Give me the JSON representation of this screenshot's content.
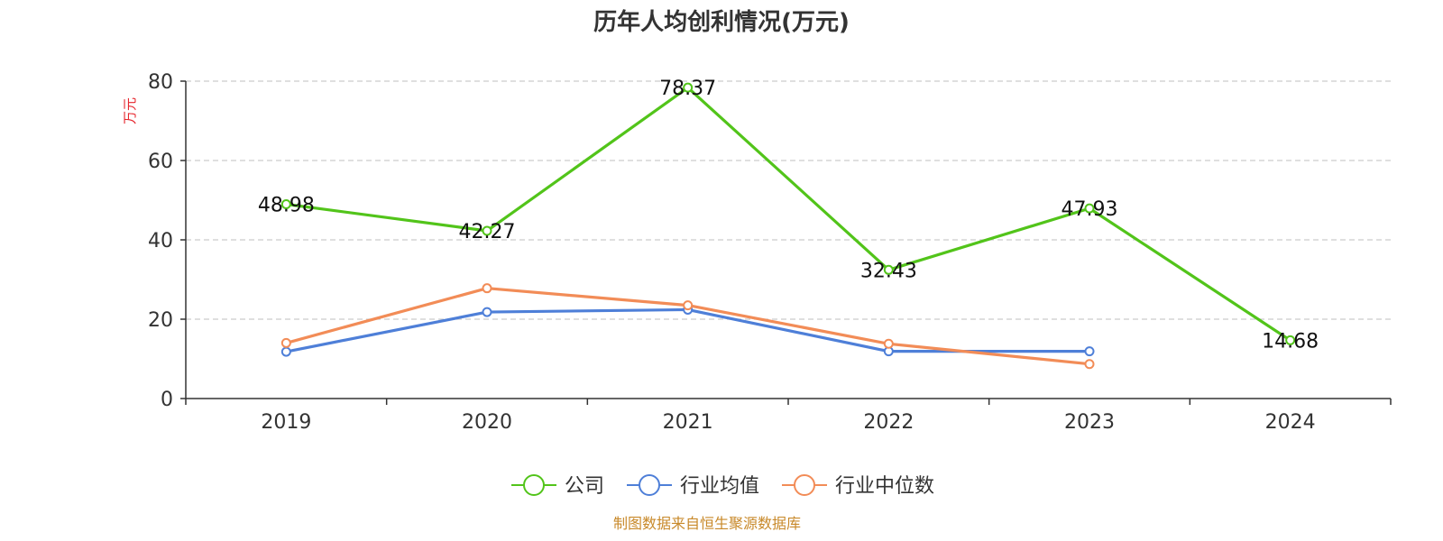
{
  "chart_data": {
    "type": "line",
    "title": "历年人均创利情况(万元)",
    "ylabel": "万元",
    "xlabel": "",
    "categories": [
      "2019",
      "2020",
      "2021",
      "2022",
      "2023",
      "2024"
    ],
    "ylim": [
      0,
      80
    ],
    "yticks": [
      0,
      20,
      40,
      60,
      80
    ],
    "grid": true,
    "legend_position": "bottom-center",
    "series": [
      {
        "name": "公司",
        "color": "#52c41a",
        "values": [
          48.98,
          42.27,
          78.37,
          32.43,
          47.93,
          14.68
        ],
        "labels": [
          "48.98",
          "42.27",
          "78.37",
          "32.43",
          "47.93",
          "14.68"
        ]
      },
      {
        "name": "行业均值",
        "color": "#4e7fd8",
        "values": [
          11.8,
          21.8,
          22.4,
          11.9,
          11.9,
          null
        ]
      },
      {
        "name": "行业中位数",
        "color": "#f28c57",
        "values": [
          14.0,
          27.8,
          23.5,
          13.8,
          8.7,
          null
        ]
      }
    ],
    "source": "制图数据来自恒生聚源数据库"
  }
}
